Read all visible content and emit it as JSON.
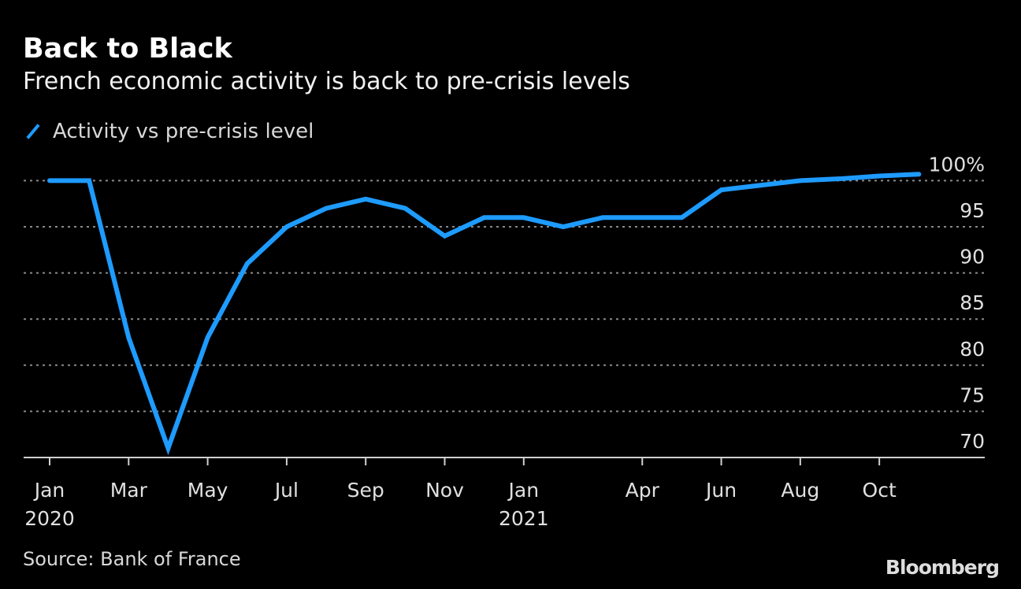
{
  "header": {
    "title": "Back to Black",
    "subtitle": "French economic activity is back to pre-crisis levels"
  },
  "footer": {
    "source": "Source: Bank of France",
    "brand": "Bloomberg"
  },
  "colors": {
    "line": "#1e9bff",
    "background": "#000000",
    "grid": "#8a8a8a"
  },
  "chart_data": {
    "type": "line",
    "title": "Back to Black",
    "subtitle": "French economic activity is back to pre-crisis levels",
    "legend": {
      "placement": "top-left",
      "entries": [
        "Activity vs pre-crisis level"
      ]
    },
    "x": [
      "2020-01",
      "2020-02",
      "2020-03",
      "2020-04",
      "2020-05",
      "2020-06",
      "2020-07",
      "2020-08",
      "2020-09",
      "2020-10",
      "2020-11",
      "2020-12",
      "2021-01",
      "2021-02",
      "2021-03",
      "2021-04",
      "2021-05",
      "2021-06",
      "2021-07",
      "2021-08",
      "2021-09",
      "2021-10",
      "2021-11"
    ],
    "series": [
      {
        "name": "Activity vs pre-crisis level",
        "values": [
          100,
          100,
          83,
          71,
          83,
          91,
          95,
          97,
          98,
          97,
          94,
          96,
          96,
          95,
          96,
          96,
          96,
          99,
          99.5,
          100,
          100.2,
          100.5,
          100.7
        ]
      }
    ],
    "ylim": [
      70,
      100
    ],
    "yticks": [
      {
        "value": 100,
        "label": "100%"
      },
      {
        "value": 95,
        "label": "95"
      },
      {
        "value": 90,
        "label": "90"
      },
      {
        "value": 85,
        "label": "85"
      },
      {
        "value": 80,
        "label": "80"
      },
      {
        "value": 75,
        "label": "75"
      },
      {
        "value": 70,
        "label": "70"
      }
    ],
    "xticks": [
      {
        "index": 0,
        "label": "Jan",
        "sub": "2020"
      },
      {
        "index": 2,
        "label": "Mar"
      },
      {
        "index": 4,
        "label": "May"
      },
      {
        "index": 6,
        "label": "Jul"
      },
      {
        "index": 8,
        "label": "Sep"
      },
      {
        "index": 10,
        "label": "Nov"
      },
      {
        "index": 12,
        "label": "Jan",
        "sub": "2021"
      },
      {
        "index": 15,
        "label": "Apr"
      },
      {
        "index": 17,
        "label": "Jun"
      },
      {
        "index": 19,
        "label": "Aug"
      },
      {
        "index": 21,
        "label": "Oct"
      }
    ],
    "grid": true,
    "xlabel": "",
    "ylabel": ""
  }
}
